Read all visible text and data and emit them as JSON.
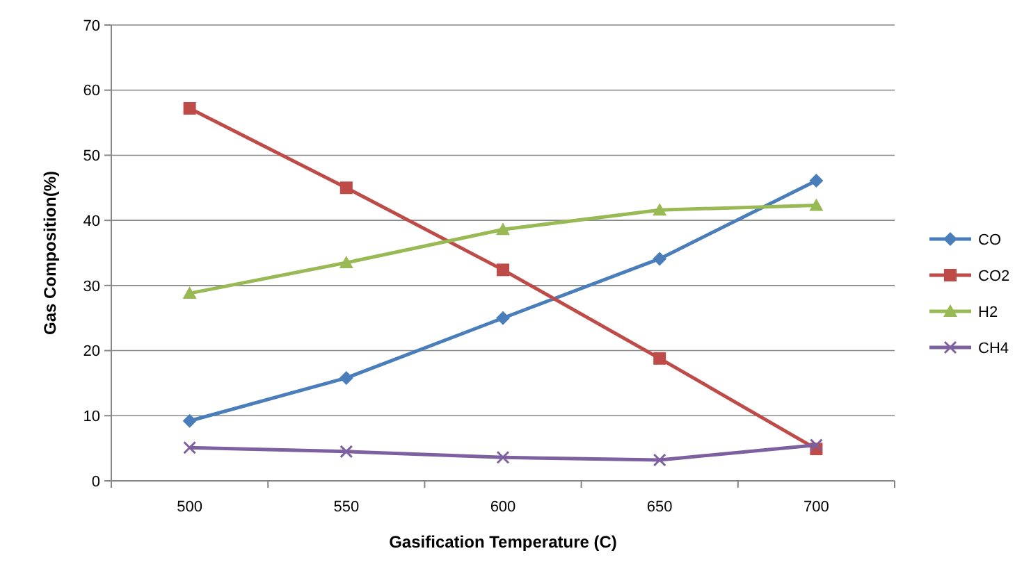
{
  "chart_data": {
    "type": "line",
    "xlabel": "Gasification Temperature (C)",
    "ylabel": "Gas Composition(%)",
    "categories": [
      "500",
      "550",
      "600",
      "650",
      "700"
    ],
    "ylim": [
      0,
      70
    ],
    "yticks": [
      0,
      10,
      20,
      30,
      40,
      50,
      60,
      70
    ],
    "grid": "y",
    "legend": "right",
    "series": [
      {
        "name": "CO",
        "color": "#4a7ebb",
        "marker": "diamond",
        "values": [
          9.2,
          15.8,
          25.0,
          34.1,
          46.1
        ]
      },
      {
        "name": "CO2",
        "color": "#be4b48",
        "marker": "square",
        "values": [
          57.2,
          45.0,
          32.4,
          18.8,
          4.9
        ]
      },
      {
        "name": "H2",
        "color": "#98b954",
        "marker": "triangle",
        "values": [
          28.8,
          33.5,
          38.6,
          41.6,
          42.3
        ]
      },
      {
        "name": "CH4",
        "color": "#7d60a0",
        "marker": "cross",
        "values": [
          5.1,
          4.5,
          3.6,
          3.2,
          5.5
        ]
      }
    ]
  }
}
